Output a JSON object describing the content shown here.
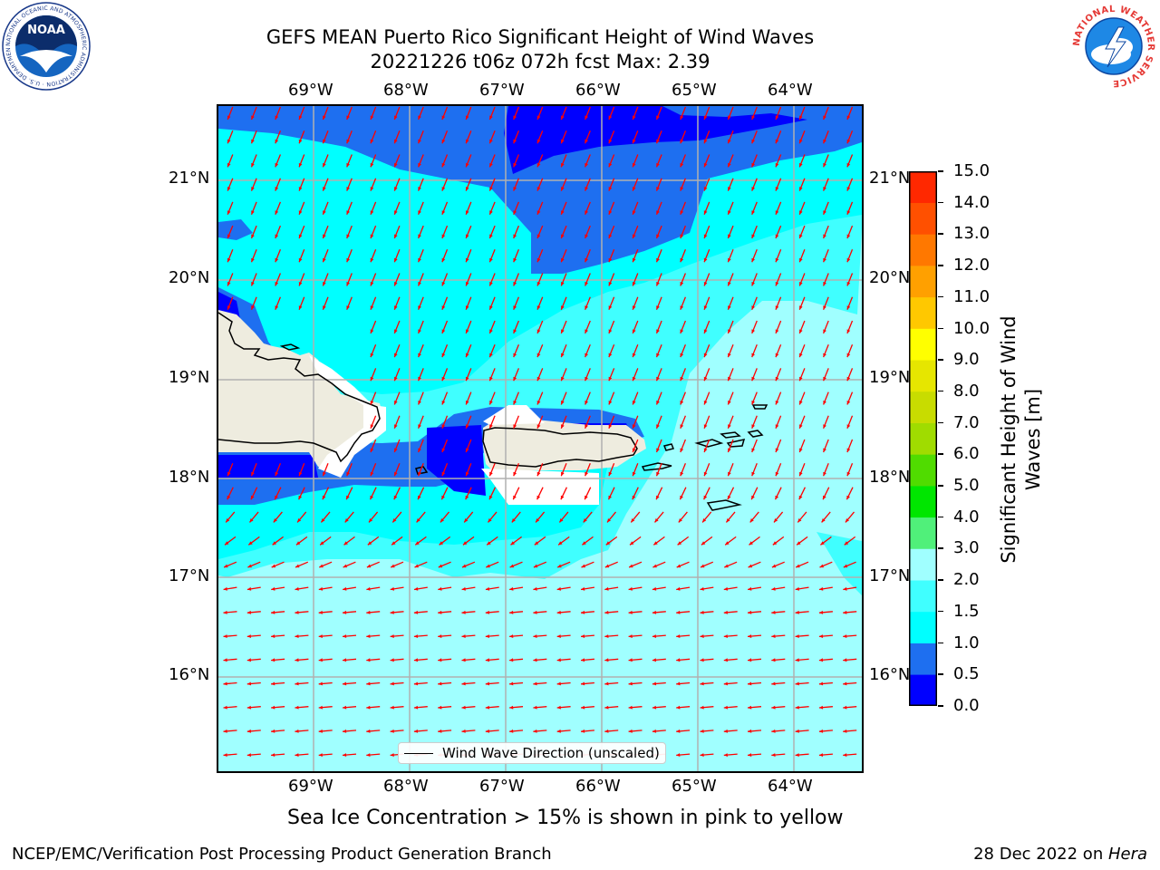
{
  "title": {
    "line1": "GEFS MEAN Puerto Rico Significant Height of Wind Waves",
    "line2": "20221226 t06z 072h fcst   Max: 2.39"
  },
  "map": {
    "lon_labels": [
      "69°W",
      "68°W",
      "67°W",
      "66°W",
      "65°W",
      "64°W"
    ],
    "lat_labels": [
      "21°N",
      "20°N",
      "19°N",
      "18°N",
      "17°N",
      "16°N"
    ],
    "land_color": "#eeecdf",
    "legend_label": "Wind Wave Direction (unscaled)",
    "arrow_color": "#ff0000"
  },
  "colorbar": {
    "label": "Significant Height of Wind Waves [m]",
    "label_line1": "Significant Height of Wind",
    "label_line2": "Waves [m]",
    "ticks": [
      "0.0",
      "0.5",
      "1.0",
      "1.5",
      "2.0",
      "3.0",
      "4.0",
      "5.0",
      "6.0",
      "7.0",
      "8.0",
      "9.0",
      "10.0",
      "11.0",
      "12.0",
      "13.0",
      "14.0",
      "15.0"
    ],
    "colors": [
      "#0000ff",
      "#1e6ff0",
      "#00ffff",
      "#40ffff",
      "#a0ffff",
      "#50f07a",
      "#00e600",
      "#50dc00",
      "#a0dc00",
      "#c8dc00",
      "#e6e600",
      "#ffff00",
      "#ffc800",
      "#ffa000",
      "#ff7800",
      "#ff5000",
      "#ff2800"
    ]
  },
  "note": "Sea Ice Concentration > 15% is shown in pink to yellow",
  "footer": {
    "left": "NCEP/EMC/Verification Post Processing Product Generation Branch",
    "right_prefix": "28 Dec 2022 on ",
    "right_host": "Hera"
  },
  "logos": {
    "noaa_text": "NOAA",
    "noaa_ring": "NATIONAL OCEANIC AND ATMOSPHERIC ADMINISTRATION · U.S. DEPARTMENT OF COMMERCE",
    "nws_ring": "NATIONAL WEATHER SERVICE"
  }
}
